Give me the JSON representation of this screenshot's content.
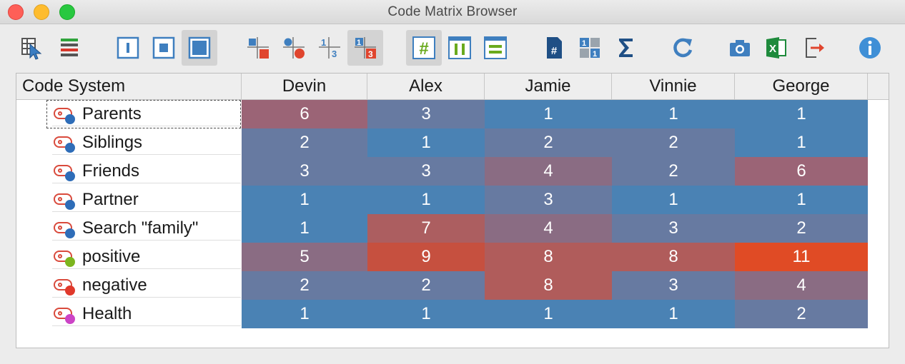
{
  "window": {
    "title": "Code Matrix Browser"
  },
  "toolbar": {
    "buttons": [
      {
        "icon": "select-document-groups-icon",
        "active": false
      },
      {
        "icon": "codes-color-bars-icon",
        "active": false
      },
      {
        "icon": "symbol-size-small-icon",
        "active": false
      },
      {
        "icon": "symbol-size-medium-icon",
        "active": false
      },
      {
        "icon": "symbol-size-large-icon",
        "active": true
      },
      {
        "icon": "squares-view-icon",
        "active": false
      },
      {
        "icon": "circles-view-icon",
        "active": false
      },
      {
        "icon": "numbers-view-icon",
        "active": false
      },
      {
        "icon": "heatmap-numbers-view-icon",
        "active": true
      },
      {
        "icon": "hits-per-document-icon",
        "active": true
      },
      {
        "icon": "columns-percentage-icon",
        "active": false
      },
      {
        "icon": "rows-percentage-icon",
        "active": false
      },
      {
        "icon": "count-hits-once-icon",
        "active": false
      },
      {
        "icon": "aggregate-icon",
        "active": false
      },
      {
        "icon": "sum-icon",
        "active": false
      },
      {
        "icon": "refresh-icon",
        "active": false
      },
      {
        "icon": "camera-snapshot-icon",
        "active": false
      },
      {
        "icon": "excel-export-icon",
        "active": false
      },
      {
        "icon": "export-icon",
        "active": false
      },
      {
        "icon": "info-icon",
        "active": false
      }
    ]
  },
  "matrix": {
    "header_label": "Code System",
    "columns": [
      "Devin",
      "Alex",
      "Jamie",
      "Vinnie",
      "George"
    ],
    "rows": [
      {
        "code": "Parents",
        "dot_color": "#2e6db8",
        "values": [
          "6",
          "3",
          "1",
          "1",
          "1"
        ],
        "selected": true
      },
      {
        "code": "Siblings",
        "dot_color": "#2e6db8",
        "values": [
          "2",
          "1",
          "2",
          "2",
          "1"
        ]
      },
      {
        "code": "Friends",
        "dot_color": "#2e6db8",
        "values": [
          "3",
          "3",
          "4",
          "2",
          "6"
        ]
      },
      {
        "code": "Partner",
        "dot_color": "#2e6db8",
        "values": [
          "1",
          "1",
          "3",
          "1",
          "1"
        ]
      },
      {
        "code": "Search \"family\"",
        "dot_color": "#2e6db8",
        "values": [
          "1",
          "7",
          "4",
          "3",
          "2"
        ]
      },
      {
        "code": "positive",
        "dot_color": "#7cb51e",
        "values": [
          "5",
          "9",
          "8",
          "8",
          "11"
        ]
      },
      {
        "code": "negative",
        "dot_color": "#e0392b",
        "values": [
          "2",
          "2",
          "8",
          "3",
          "4"
        ]
      },
      {
        "code": "Health",
        "dot_color": "#cc44c6",
        "values": [
          "1",
          "1",
          "1",
          "1",
          "2"
        ]
      }
    ],
    "heat_colors": {
      "1": "#4a82b4",
      "2": "#677aa1",
      "3": "#677aa1",
      "4": "#8a6c83",
      "5": "#8a6c83",
      "6": "#9b6476",
      "7": "#ac5e60",
      "8": "#b05c5b",
      "9": "#c6503f",
      "11": "#e04b25"
    }
  }
}
